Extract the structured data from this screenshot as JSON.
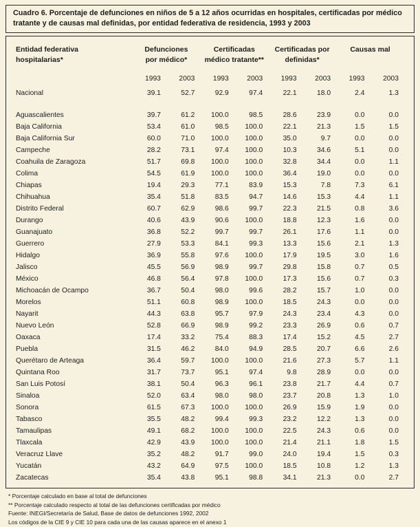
{
  "title": "Cuadro 6.  Porcentaje de defunciones en niños de 5 a 12 años ocurridas en hospitales, certificadas por médico tratante y de causas mal definidas, por entidad federativa de residencia, 1993 y 2003",
  "header": {
    "groups": [
      {
        "line1": "Entidad federativa",
        "line2": "hospitalarias*"
      },
      {
        "line1": "Defunciones",
        "line2": "por médico*"
      },
      {
        "line1": "Certificadas",
        "line2": "médico tratante**"
      },
      {
        "line1": "Certificadas por",
        "line2": "definidas*"
      },
      {
        "line1": "Causas mal",
        "line2": ""
      }
    ],
    "years": [
      "1993",
      "2003",
      "1993",
      "2003",
      "1993",
      "2003",
      "1993",
      "2003"
    ]
  },
  "table": {
    "nacional": {
      "name": "Nacional",
      "values": [
        "39.1",
        "52.7",
        "92.9",
        "97.4",
        "22.1",
        "18.0",
        "2.4",
        "1.3"
      ]
    },
    "rows": [
      {
        "name": "Aguascalientes",
        "values": [
          "39.7",
          "61.2",
          "100.0",
          "98.5",
          "28.6",
          "23.9",
          "0.0",
          "0.0"
        ]
      },
      {
        "name": "Baja California",
        "values": [
          "53.4",
          "61.0",
          "98.5",
          "100.0",
          "22.1",
          "21.3",
          "1.5",
          "1.5"
        ]
      },
      {
        "name": "Baja California Sur",
        "values": [
          "60.0",
          "71.0",
          "100.0",
          "100.0",
          "35.0",
          "9.7",
          "0.0",
          "0.0"
        ]
      },
      {
        "name": "Campeche",
        "values": [
          "28.2",
          "73.1",
          "97.4",
          "100.0",
          "10.3",
          "34.6",
          "5.1",
          "0.0"
        ]
      },
      {
        "name": "Coahuila de Zaragoza",
        "values": [
          "51.7",
          "69.8",
          "100.0",
          "100.0",
          "32.8",
          "34.4",
          "0.0",
          "1.1"
        ]
      },
      {
        "name": "Colima",
        "values": [
          "54.5",
          "61.9",
          "100.0",
          "100.0",
          "36.4",
          "19.0",
          "0.0",
          "0.0"
        ]
      },
      {
        "name": "Chiapas",
        "values": [
          "19.4",
          "29.3",
          "77.1",
          "83.9",
          "15.3",
          "7.8",
          "7.3",
          "6.1"
        ]
      },
      {
        "name": "Chihuahua",
        "values": [
          "35.4",
          "51.8",
          "83.5",
          "94.7",
          "14.6",
          "15.3",
          "4.4",
          "1.1"
        ]
      },
      {
        "name": "Distrito Federal",
        "values": [
          "60.7",
          "62.9",
          "98.6",
          "99.7",
          "22.3",
          "21.5",
          "0.8",
          "3.6"
        ]
      },
      {
        "name": "Durango",
        "values": [
          "40.6",
          "43.9",
          "90.6",
          "100.0",
          "18.8",
          "12.3",
          "1.6",
          "0.0"
        ]
      },
      {
        "name": "Guanajuato",
        "values": [
          "36.8",
          "52.2",
          "99.7",
          "99.7",
          "26.1",
          "17.6",
          "1.1",
          "0.0"
        ]
      },
      {
        "name": "Guerrero",
        "values": [
          "27.9",
          "53.3",
          "84.1",
          "99.3",
          "13.3",
          "15.6",
          "2.1",
          "1.3"
        ]
      },
      {
        "name": "Hidalgo",
        "values": [
          "36.9",
          "55.8",
          "97.6",
          "100.0",
          "17.9",
          "19.5",
          "3.0",
          "1.6"
        ]
      },
      {
        "name": "Jalisco",
        "values": [
          "45.5",
          "56.9",
          "98.9",
          "99.7",
          "29.8",
          "15.8",
          "0.7",
          "0.5"
        ]
      },
      {
        "name": "México",
        "values": [
          "46.8",
          "56.4",
          "97.8",
          "100.0",
          "17.3",
          "15.6",
          "0.7",
          "0.3"
        ]
      },
      {
        "name": "Michoacán de Ocampo",
        "values": [
          "36.7",
          "50.4",
          "98.0",
          "99.6",
          "28.2",
          "15.7",
          "1.0",
          "0.0"
        ]
      },
      {
        "name": "Morelos",
        "values": [
          "51.1",
          "60.8",
          "98.9",
          "100.0",
          "18.5",
          "24.3",
          "0.0",
          "0.0"
        ]
      },
      {
        "name": "Nayarit",
        "values": [
          "44.3",
          "63.8",
          "95.7",
          "97.9",
          "24.3",
          "23.4",
          "4.3",
          "0.0"
        ]
      },
      {
        "name": "Nuevo León",
        "values": [
          "52.8",
          "66.9",
          "98.9",
          "99.2",
          "23.3",
          "26.9",
          "0.6",
          "0.7"
        ]
      },
      {
        "name": "Oaxaca",
        "values": [
          "17.4",
          "33.2",
          "75.4",
          "88.3",
          "17.4",
          "15.2",
          "4.5",
          "2.7"
        ]
      },
      {
        "name": "Puebla",
        "values": [
          "31.5",
          "46.2",
          "84.0",
          "94.9",
          "28.5",
          "20.7",
          "6.6",
          "2.6"
        ]
      },
      {
        "name": "Querétaro de Arteaga",
        "values": [
          "36.4",
          "59.7",
          "100.0",
          "100.0",
          "21.6",
          "27.3",
          "5.7",
          "1.1"
        ]
      },
      {
        "name": "Quintana Roo",
        "values": [
          "31.7",
          "73.7",
          "95.1",
          "97.4",
          "9.8",
          "28.9",
          "0.0",
          "0.0"
        ]
      },
      {
        "name": "San Luis Potosí",
        "values": [
          "38.1",
          "50.4",
          "96.3",
          "96.1",
          "23.8",
          "21.7",
          "4.4",
          "0.7"
        ]
      },
      {
        "name": "Sinaloa",
        "values": [
          "52.0",
          "63.4",
          "98.0",
          "98.0",
          "23.7",
          "20.8",
          "1.3",
          "1.0"
        ]
      },
      {
        "name": "Sonora",
        "values": [
          "61.5",
          "67.3",
          "100.0",
          "100.0",
          "26.9",
          "15.9",
          "1.9",
          "0.0"
        ]
      },
      {
        "name": "Tabasco",
        "values": [
          "35.5",
          "48.2",
          "99.4",
          "99.3",
          "23.2",
          "12.2",
          "1.3",
          "0.0"
        ]
      },
      {
        "name": "Tamaulipas",
        "values": [
          "49.1",
          "68.2",
          "100.0",
          "100.0",
          "22.5",
          "24.3",
          "0.6",
          "0.0"
        ]
      },
      {
        "name": "Tlaxcala",
        "values": [
          "42.9",
          "43.9",
          "100.0",
          "100.0",
          "21.4",
          "21.1",
          "1.8",
          "1.5"
        ]
      },
      {
        "name": "Veracruz Llave",
        "values": [
          "35.2",
          "48.2",
          "91.7",
          "99.0",
          "24.0",
          "19.4",
          "1.5",
          "0.3"
        ]
      },
      {
        "name": "Yucatán",
        "values": [
          "43.2",
          "64.9",
          "97.5",
          "100.0",
          "18.5",
          "10.8",
          "1.2",
          "1.3"
        ]
      },
      {
        "name": "Zacatecas",
        "values": [
          "35.4",
          "43.8",
          "95.1",
          "98.8",
          "34.1",
          "21.3",
          "0.0",
          "2.7"
        ]
      }
    ]
  },
  "footnotes": [
    "* Porcentaje calculado en base al total de defunciones",
    "** Porcentaje calculado respecto al total de las defunciones certificadas por médico",
    "Fuente: INEGI/Secretaría de Salud, Base de datos de defunciones 1992, 2002",
    "Los códigos de la CIE 9 y CIE 10 para cada una de las causas aparece en el anexo 1"
  ]
}
